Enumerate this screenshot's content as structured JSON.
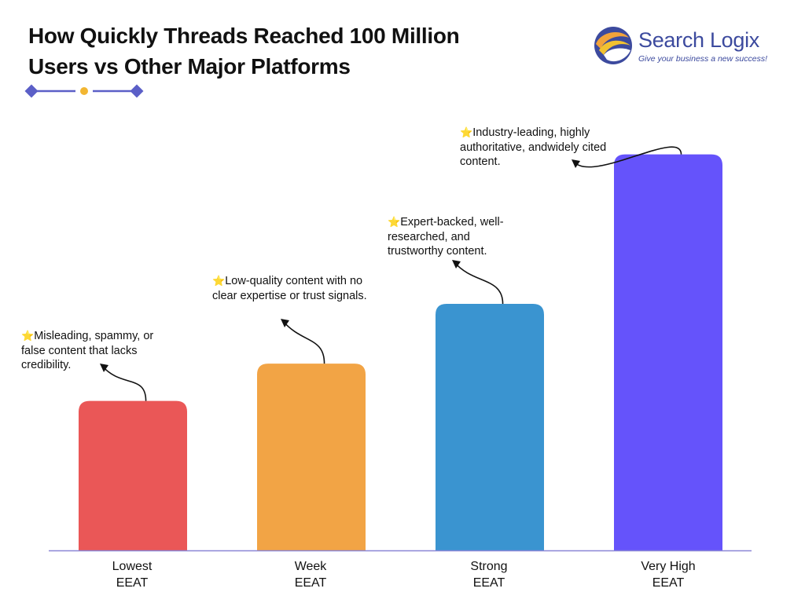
{
  "header": {
    "title_line1": "How Quickly Threads Reached 100 Million",
    "title_line2": "Users vs Other Major Platforms"
  },
  "logo": {
    "name": "Search Logix",
    "tagline": "Give your business a new success!",
    "colors": {
      "blue": "#3c4a9e",
      "orange": "#f2a33a",
      "yellow": "#f2c230"
    }
  },
  "decoration": {
    "colors": {
      "diamond": "#5b5fc7",
      "dot": "#f2b632",
      "line": "#5b5fc7"
    }
  },
  "annotation_icon": "star-icon",
  "chart_data": {
    "type": "bar",
    "title": "How Quickly Threads Reached 100 Million Users vs Other Major Platforms",
    "categories": [
      {
        "line1": "Lowest",
        "line2": "EEAT"
      },
      {
        "line1": "Week",
        "line2": "EEAT"
      },
      {
        "line1": "Strong",
        "line2": "EEAT"
      },
      {
        "line1": "Very High",
        "line2": "EEAT"
      }
    ],
    "values": [
      1,
      1.25,
      1.65,
      2.65
    ],
    "colors": [
      "#ea5757",
      "#f2a445",
      "#3a94d0",
      "#6553fb"
    ],
    "ylim": [
      0,
      3
    ],
    "grid": false,
    "axis_color": "#8a86d6",
    "annotations": [
      "Misleading, spammy, or false content that lacks credibility.",
      "Low-quality content with no clear expertise or trust signals.",
      "Expert-backed, well-researched, and trustworthy content.",
      "Industry-leading, highly authoritative, andwidely cited content."
    ]
  }
}
